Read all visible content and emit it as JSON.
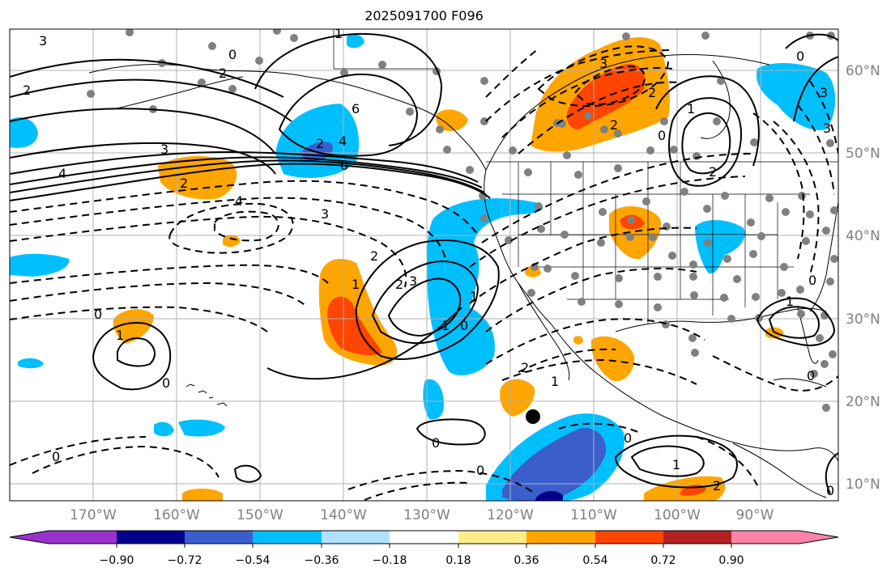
{
  "title": "2025091700 F096",
  "lon_labels": [
    "170°W",
    "160°W",
    "150°W",
    "140°W",
    "130°W",
    "120°W",
    "110°W",
    "100°W",
    "90°W"
  ],
  "lat_labels": [
    "60°N",
    "50°N",
    "40°N",
    "30°N",
    "20°N",
    "10°N"
  ],
  "colorbar": {
    "tick_labels": [
      "−0.90",
      "−0.72",
      "−0.54",
      "−0.36",
      "−0.18",
      "0.18",
      "0.36",
      "0.54",
      "0.72",
      "0.90"
    ],
    "colors": [
      "#9932cc",
      "#00008b",
      "#3a5fcd",
      "#00bfff",
      "#b0e2ff",
      "#ffffff",
      "#ffec8b",
      "#ffa500",
      "#ff4500",
      "#b22222",
      "#ff82ab"
    ]
  },
  "contour_labels": [
    "3",
    "0",
    "1",
    "2",
    "2",
    "4",
    "6",
    "4",
    "2",
    "0",
    "3",
    "2",
    "4",
    "3",
    "2",
    "1",
    "2",
    "3",
    "1",
    "0",
    "1",
    "0",
    "0",
    "0",
    "2",
    "1",
    "1",
    "2",
    "0",
    "3",
    "1",
    "2",
    "3",
    "0",
    "2",
    "0",
    "1",
    "0",
    "0",
    "1",
    "2",
    "0",
    "0",
    "3",
    "0"
  ],
  "colors": {
    "grid": "#b0b0b0",
    "coast": "#000000",
    "dots": "#808080",
    "marker": "#000000"
  }
}
